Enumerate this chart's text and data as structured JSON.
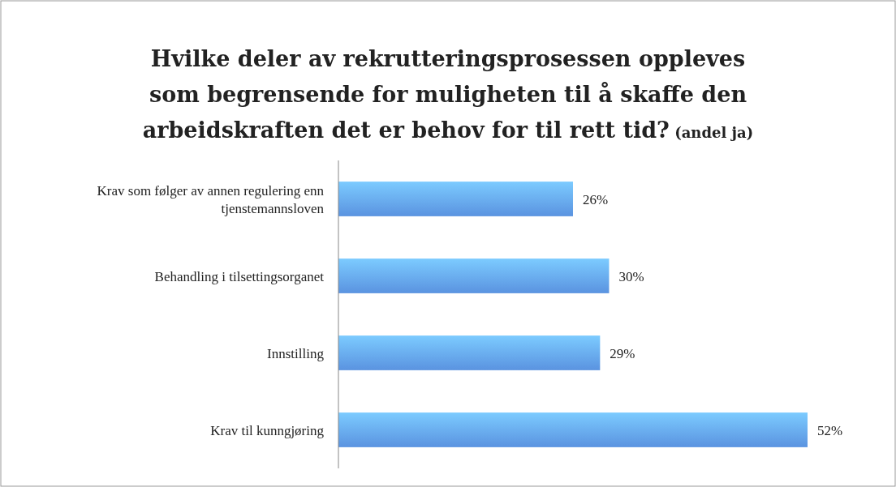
{
  "chart_data": {
    "type": "bar",
    "orientation": "horizontal",
    "title": "Hvilke deler av rekrutteringsprosessen oppleves som begrensende for muligheten til å skaffe den arbeidskraften det er behov for til rett tid?",
    "subtitle": "(andel ja)",
    "categories": [
      "Krav som følger av annen regulering enn tjenstemannsloven",
      "Behandling i tilsettingsorganet",
      "Innstilling",
      "Krav til kunngjøring"
    ],
    "values": [
      26,
      30,
      29,
      52
    ],
    "value_labels": [
      "26%",
      "30%",
      "29%",
      "52%"
    ],
    "color": "#5a93e0"
  }
}
